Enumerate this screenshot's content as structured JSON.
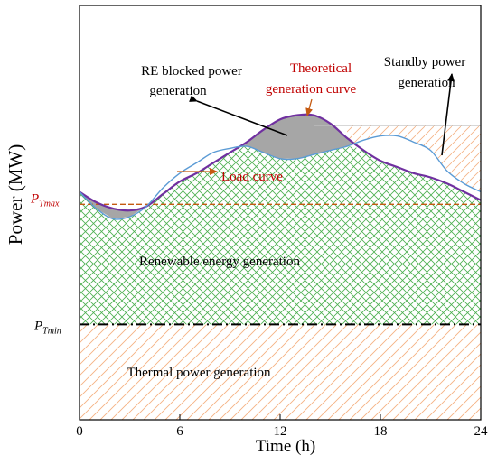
{
  "chart_data": {
    "type": "area",
    "xlabel": "Time (h)",
    "ylabel": "Power (MW)",
    "xlim": [
      0,
      24
    ],
    "ylim": [
      0,
      10
    ],
    "x_ticks": [
      "0",
      "6",
      "12",
      "18",
      "24"
    ],
    "grid": false,
    "levels": {
      "p_tmax": {
        "label_main": "P",
        "label_sub": "Tmax",
        "value": 5.2
      },
      "p_tmin": {
        "label_main": "P",
        "label_sub": "Tmin",
        "value": 2.3
      },
      "standby_cap": 7.1
    },
    "series": [
      {
        "name": "Theoretical generation curve",
        "color": "#7030a0",
        "x": [
          0,
          1,
          2,
          3,
          4,
          5,
          6,
          7,
          8,
          9,
          10,
          11,
          12,
          13,
          14,
          15,
          16,
          17,
          18,
          19,
          20,
          21,
          22,
          23,
          24
        ],
        "y": [
          5.5,
          5.25,
          5.1,
          5.05,
          5.15,
          5.45,
          5.75,
          5.95,
          6.2,
          6.45,
          6.7,
          7.0,
          7.25,
          7.35,
          7.35,
          7.15,
          6.8,
          6.5,
          6.25,
          6.1,
          5.95,
          5.85,
          5.7,
          5.5,
          5.3
        ]
      },
      {
        "name": "Load curve",
        "color": "#5b9bd5",
        "x": [
          0,
          1,
          2,
          3,
          4,
          5,
          6,
          7,
          8,
          9,
          10,
          11,
          12,
          13,
          14,
          15,
          16,
          17,
          18,
          19,
          20,
          21,
          22,
          23,
          24
        ],
        "y": [
          5.5,
          5.1,
          4.85,
          4.9,
          5.15,
          5.6,
          5.95,
          6.2,
          6.45,
          6.55,
          6.6,
          6.45,
          6.3,
          6.3,
          6.4,
          6.5,
          6.6,
          6.75,
          6.85,
          6.85,
          6.7,
          6.5,
          6.0,
          5.7,
          5.5
        ]
      }
    ],
    "regions": {
      "renewable": "Renewable energy generation",
      "thermal": "Thermal power generation"
    },
    "annotations": {
      "re_blocked_line1": "RE blocked power",
      "re_blocked_line2": "generation",
      "theoretical_line1": "Theoretical",
      "theoretical_line2": "generation curve",
      "standby_line1": "Standby power",
      "standby_line2": "generation",
      "load_curve": "Load curve"
    },
    "colors": {
      "theoretical": "#7030a0",
      "load": "#5b9bd5",
      "blocked_fill": "#a6a6a6",
      "renewable_hatch": "#4caf50",
      "thermal_hatch": "#f4b183",
      "p_tmax_line": "#c55a11",
      "p_tmin_line": "#000000",
      "red_text": "#c00000",
      "arrow_red": "#c55a11"
    }
  }
}
